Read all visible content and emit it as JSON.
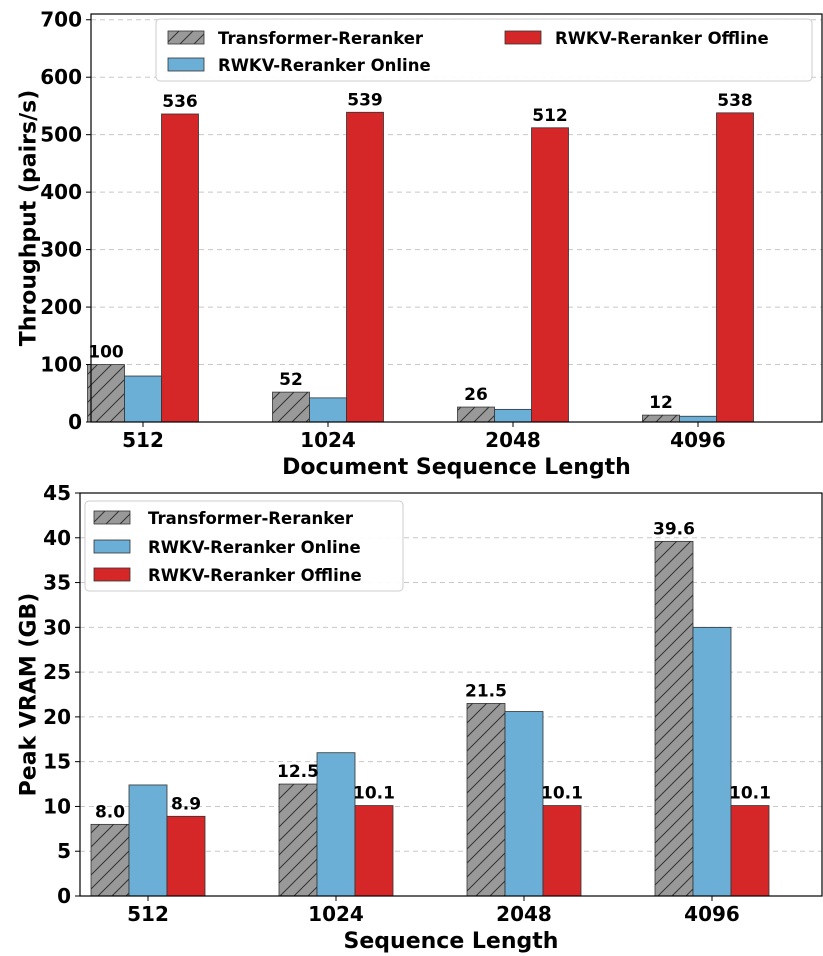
{
  "colors": {
    "transformer": "#999999",
    "online": "#6baed6",
    "offline": "#d62728"
  },
  "chart_data": [
    {
      "type": "bar",
      "categories": [
        "512",
        "1024",
        "2048",
        "4096"
      ],
      "xlabel": "Document Sequence Length",
      "ylabel": "Throughput (pairs/s)",
      "ylim": [
        0,
        710
      ],
      "yticks": [
        "0",
        "100",
        "200",
        "300",
        "400",
        "500",
        "600",
        "700"
      ],
      "grid": true,
      "legend_position": "top",
      "series": [
        {
          "name": "Transformer-Reranker",
          "values": [
            100,
            52,
            26,
            12
          ],
          "labels": [
            "100",
            "52",
            "26",
            "12"
          ]
        },
        {
          "name": "RWKV-Reranker Online",
          "values": [
            80,
            42,
            22,
            10
          ],
          "labels": [
            "",
            "",
            "",
            ""
          ]
        },
        {
          "name": "RWKV-Reranker Offline",
          "values": [
            536,
            539,
            512,
            538
          ],
          "labels": [
            "536",
            "539",
            "512",
            "538"
          ]
        }
      ]
    },
    {
      "type": "bar",
      "categories": [
        "512",
        "1024",
        "2048",
        "4096"
      ],
      "xlabel": "Sequence Length",
      "ylabel": "Peak VRAM (GB)",
      "ylim": [
        0,
        45
      ],
      "yticks": [
        "0",
        "5",
        "10",
        "15",
        "20",
        "25",
        "30",
        "35",
        "40",
        "45"
      ],
      "grid": true,
      "legend_position": "top-left",
      "series": [
        {
          "name": "Transformer-Reranker",
          "values": [
            8.0,
            12.5,
            21.5,
            39.6
          ],
          "labels": [
            "8.0",
            "12.5",
            "21.5",
            "39.6"
          ]
        },
        {
          "name": "RWKV-Reranker Online",
          "values": [
            12.4,
            16.0,
            20.6,
            30.0
          ],
          "labels": [
            "",
            "",
            "",
            ""
          ]
        },
        {
          "name": "RWKV-Reranker Offline",
          "values": [
            8.9,
            10.1,
            10.1,
            10.1
          ],
          "labels": [
            "8.9",
            "10.1",
            "10.1",
            "10.1"
          ]
        }
      ]
    }
  ]
}
